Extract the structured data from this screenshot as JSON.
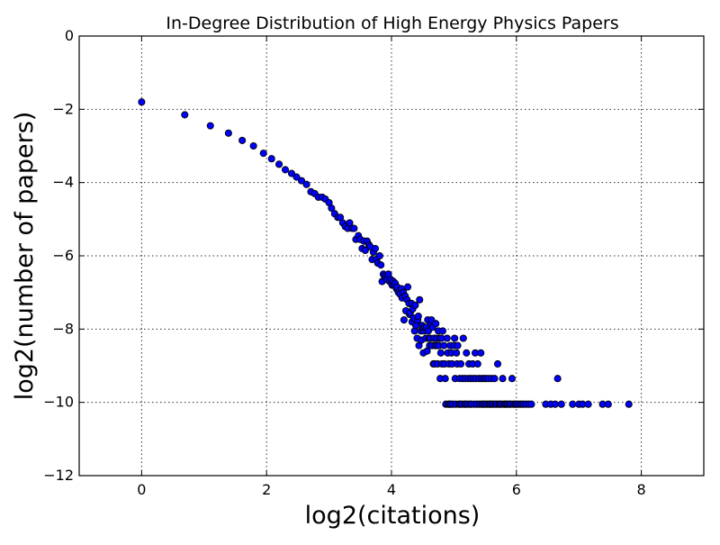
{
  "chart_data": {
    "type": "scatter",
    "title": "In-Degree Distribution of High Energy Physics Papers",
    "xlabel": "log2(citations)",
    "ylabel": "log2(number of papers)",
    "xlim": [
      -1,
      9
    ],
    "ylim": [
      -12,
      0
    ],
    "xticks": [
      0,
      2,
      4,
      6,
      8
    ],
    "yticks": [
      0,
      -2,
      -4,
      -6,
      -8,
      -10,
      -12
    ],
    "xtick_labels": [
      "0",
      "2",
      "4",
      "6",
      "8"
    ],
    "ytick_labels": [
      "0",
      "−2",
      "−4",
      "−6",
      "−8",
      "−10",
      "−12"
    ],
    "grid": true,
    "marker_color": "#0000ff",
    "marker_edge_color": "#000000",
    "series": [
      {
        "points": [
          [
            0.0,
            -1.8
          ],
          [
            0.69,
            -2.15
          ],
          [
            1.1,
            -2.45
          ],
          [
            1.39,
            -2.65
          ],
          [
            1.61,
            -2.85
          ],
          [
            1.79,
            -3.0
          ],
          [
            1.95,
            -3.2
          ],
          [
            2.08,
            -3.35
          ],
          [
            2.2,
            -3.5
          ],
          [
            2.3,
            -3.65
          ],
          [
            2.4,
            -3.75
          ],
          [
            2.48,
            -3.85
          ],
          [
            2.56,
            -3.95
          ],
          [
            2.64,
            -4.05
          ],
          [
            2.71,
            -4.25
          ],
          [
            2.77,
            -4.3
          ],
          [
            2.83,
            -4.4
          ],
          [
            2.89,
            -4.4
          ],
          [
            2.94,
            -4.45
          ],
          [
            3.0,
            -4.55
          ],
          [
            3.04,
            -4.7
          ],
          [
            3.09,
            -4.85
          ],
          [
            3.14,
            -4.95
          ],
          [
            3.18,
            -4.95
          ],
          [
            3.22,
            -5.1
          ],
          [
            3.26,
            -5.2
          ],
          [
            3.3,
            -5.25
          ],
          [
            3.33,
            -5.1
          ],
          [
            3.37,
            -5.25
          ],
          [
            3.4,
            -5.25
          ],
          [
            3.43,
            -5.55
          ],
          [
            3.47,
            -5.45
          ],
          [
            3.5,
            -5.55
          ],
          [
            3.53,
            -5.8
          ],
          [
            3.56,
            -5.6
          ],
          [
            3.58,
            -5.85
          ],
          [
            3.61,
            -5.6
          ],
          [
            3.64,
            -5.7
          ],
          [
            3.66,
            -5.75
          ],
          [
            3.69,
            -6.1
          ],
          [
            3.71,
            -5.9
          ],
          [
            3.74,
            -5.8
          ],
          [
            3.76,
            -6.1
          ],
          [
            3.78,
            -6.2
          ],
          [
            3.81,
            -6.0
          ],
          [
            3.83,
            -6.25
          ],
          [
            3.85,
            -6.7
          ],
          [
            3.87,
            -6.5
          ],
          [
            3.89,
            -6.55
          ],
          [
            3.91,
            -6.6
          ],
          [
            3.93,
            -6.65
          ],
          [
            3.95,
            -6.5
          ],
          [
            3.97,
            -6.7
          ],
          [
            3.99,
            -6.65
          ],
          [
            4.01,
            -6.8
          ],
          [
            4.03,
            -6.7
          ],
          [
            4.04,
            -6.8
          ],
          [
            4.06,
            -6.75
          ],
          [
            4.08,
            -6.9
          ],
          [
            4.09,
            -6.85
          ],
          [
            4.11,
            -7.0
          ],
          [
            4.13,
            -6.95
          ],
          [
            4.14,
            -7.05
          ],
          [
            4.16,
            -6.9
          ],
          [
            4.17,
            -7.15
          ],
          [
            4.19,
            -7.0
          ],
          [
            4.2,
            -7.75
          ],
          [
            4.22,
            -7.1
          ],
          [
            4.23,
            -7.5
          ],
          [
            4.25,
            -7.2
          ],
          [
            4.26,
            -6.85
          ],
          [
            4.28,
            -7.3
          ],
          [
            4.29,
            -7.6
          ],
          [
            4.3,
            -7.55
          ],
          [
            4.32,
            -7.3
          ],
          [
            4.33,
            -7.8
          ],
          [
            4.34,
            -7.45
          ],
          [
            4.36,
            -7.7
          ],
          [
            4.37,
            -8.05
          ],
          [
            4.38,
            -7.35
          ],
          [
            4.39,
            -7.9
          ],
          [
            4.41,
            -8.25
          ],
          [
            4.42,
            -7.75
          ],
          [
            4.43,
            -7.65
          ],
          [
            4.44,
            -8.45
          ],
          [
            4.45,
            -7.2
          ],
          [
            4.47,
            -8.05
          ],
          [
            4.48,
            -8.3
          ],
          [
            4.49,
            -7.9
          ],
          [
            4.5,
            -8.0
          ],
          [
            4.51,
            -8.65
          ],
          [
            4.52,
            -8.05
          ],
          [
            4.53,
            -7.95
          ],
          [
            4.55,
            -8.25
          ],
          [
            4.56,
            -7.95
          ],
          [
            4.57,
            -8.6
          ],
          [
            4.58,
            -7.75
          ],
          [
            4.59,
            -8.05
          ],
          [
            4.6,
            -8.25
          ],
          [
            4.61,
            -8.45
          ],
          [
            4.62,
            -8.25
          ],
          [
            4.63,
            -7.85
          ],
          [
            4.64,
            -7.75
          ],
          [
            4.65,
            -8.45
          ],
          [
            4.66,
            -7.95
          ],
          [
            4.67,
            -8.95
          ],
          [
            4.68,
            -8.25
          ],
          [
            4.69,
            -8.95
          ],
          [
            4.7,
            -8.45
          ],
          [
            4.71,
            -7.85
          ],
          [
            4.72,
            -8.25
          ],
          [
            4.73,
            -8.45
          ],
          [
            4.74,
            -8.95
          ],
          [
            4.75,
            -8.05
          ],
          [
            4.76,
            -8.45
          ],
          [
            4.77,
            -8.25
          ],
          [
            4.78,
            -9.35
          ],
          [
            4.79,
            -8.65
          ],
          [
            4.8,
            -8.25
          ],
          [
            4.81,
            -8.95
          ],
          [
            4.82,
            -8.05
          ],
          [
            4.84,
            -8.45
          ],
          [
            4.85,
            -8.95
          ],
          [
            4.86,
            -9.35
          ],
          [
            4.87,
            -10.05
          ],
          [
            4.89,
            -8.25
          ],
          [
            4.9,
            -8.65
          ],
          [
            4.91,
            -10.05
          ],
          [
            4.92,
            -8.95
          ],
          [
            4.93,
            -10.05
          ],
          [
            4.94,
            -8.45
          ],
          [
            4.95,
            -10.05
          ],
          [
            4.96,
            -8.65
          ],
          [
            4.97,
            -8.95
          ],
          [
            4.98,
            -10.05
          ],
          [
            5.0,
            -8.45
          ],
          [
            5.01,
            -8.25
          ],
          [
            5.02,
            -9.35
          ],
          [
            5.03,
            -10.05
          ],
          [
            5.04,
            -8.65
          ],
          [
            5.05,
            -8.95
          ],
          [
            5.06,
            -8.45
          ],
          [
            5.08,
            -10.05
          ],
          [
            5.09,
            -9.35
          ],
          [
            5.1,
            -10.05
          ],
          [
            5.11,
            -8.95
          ],
          [
            5.13,
            -10.05
          ],
          [
            5.14,
            -9.35
          ],
          [
            5.15,
            -8.25
          ],
          [
            5.17,
            -10.05
          ],
          [
            5.18,
            -9.35
          ],
          [
            5.19,
            -10.05
          ],
          [
            5.2,
            -8.65
          ],
          [
            5.22,
            -10.05
          ],
          [
            5.23,
            -9.35
          ],
          [
            5.24,
            -8.95
          ],
          [
            5.26,
            -10.05
          ],
          [
            5.27,
            -9.35
          ],
          [
            5.28,
            -10.05
          ],
          [
            5.3,
            -8.95
          ],
          [
            5.31,
            -9.35
          ],
          [
            5.33,
            -10.05
          ],
          [
            5.34,
            -8.65
          ],
          [
            5.35,
            -9.35
          ],
          [
            5.37,
            -10.05
          ],
          [
            5.38,
            -8.95
          ],
          [
            5.4,
            -9.35
          ],
          [
            5.41,
            -10.05
          ],
          [
            5.43,
            -8.65
          ],
          [
            5.44,
            -9.35
          ],
          [
            5.45,
            -10.05
          ],
          [
            5.47,
            -10.05
          ],
          [
            5.48,
            -9.35
          ],
          [
            5.5,
            -10.05
          ],
          [
            5.51,
            -9.35
          ],
          [
            5.53,
            -10.05
          ],
          [
            5.55,
            -9.35
          ],
          [
            5.56,
            -10.05
          ],
          [
            5.58,
            -10.05
          ],
          [
            5.6,
            -9.35
          ],
          [
            5.61,
            -10.05
          ],
          [
            5.63,
            -10.05
          ],
          [
            5.65,
            -9.35
          ],
          [
            5.67,
            -10.05
          ],
          [
            5.68,
            -10.05
          ],
          [
            5.7,
            -8.95
          ],
          [
            5.72,
            -10.05
          ],
          [
            5.74,
            -10.05
          ],
          [
            5.76,
            -10.05
          ],
          [
            5.78,
            -9.35
          ],
          [
            5.8,
            -10.05
          ],
          [
            5.82,
            -10.05
          ],
          [
            5.84,
            -10.05
          ],
          [
            5.86,
            -10.05
          ],
          [
            5.89,
            -10.05
          ],
          [
            5.91,
            -10.05
          ],
          [
            5.93,
            -9.35
          ],
          [
            5.95,
            -10.05
          ],
          [
            5.98,
            -10.05
          ],
          [
            6.0,
            -10.05
          ],
          [
            6.03,
            -10.05
          ],
          [
            6.06,
            -10.05
          ],
          [
            6.09,
            -10.05
          ],
          [
            6.12,
            -10.05
          ],
          [
            6.16,
            -10.05
          ],
          [
            6.2,
            -10.05
          ],
          [
            6.24,
            -10.05
          ],
          [
            6.47,
            -10.05
          ],
          [
            6.55,
            -10.05
          ],
          [
            6.62,
            -10.05
          ],
          [
            6.66,
            -9.35
          ],
          [
            6.72,
            -10.05
          ],
          [
            6.9,
            -10.05
          ],
          [
            7.0,
            -10.05
          ],
          [
            7.06,
            -10.05
          ],
          [
            7.15,
            -10.05
          ],
          [
            7.38,
            -10.05
          ],
          [
            7.47,
            -10.05
          ],
          [
            7.8,
            -10.05
          ]
        ]
      }
    ]
  }
}
